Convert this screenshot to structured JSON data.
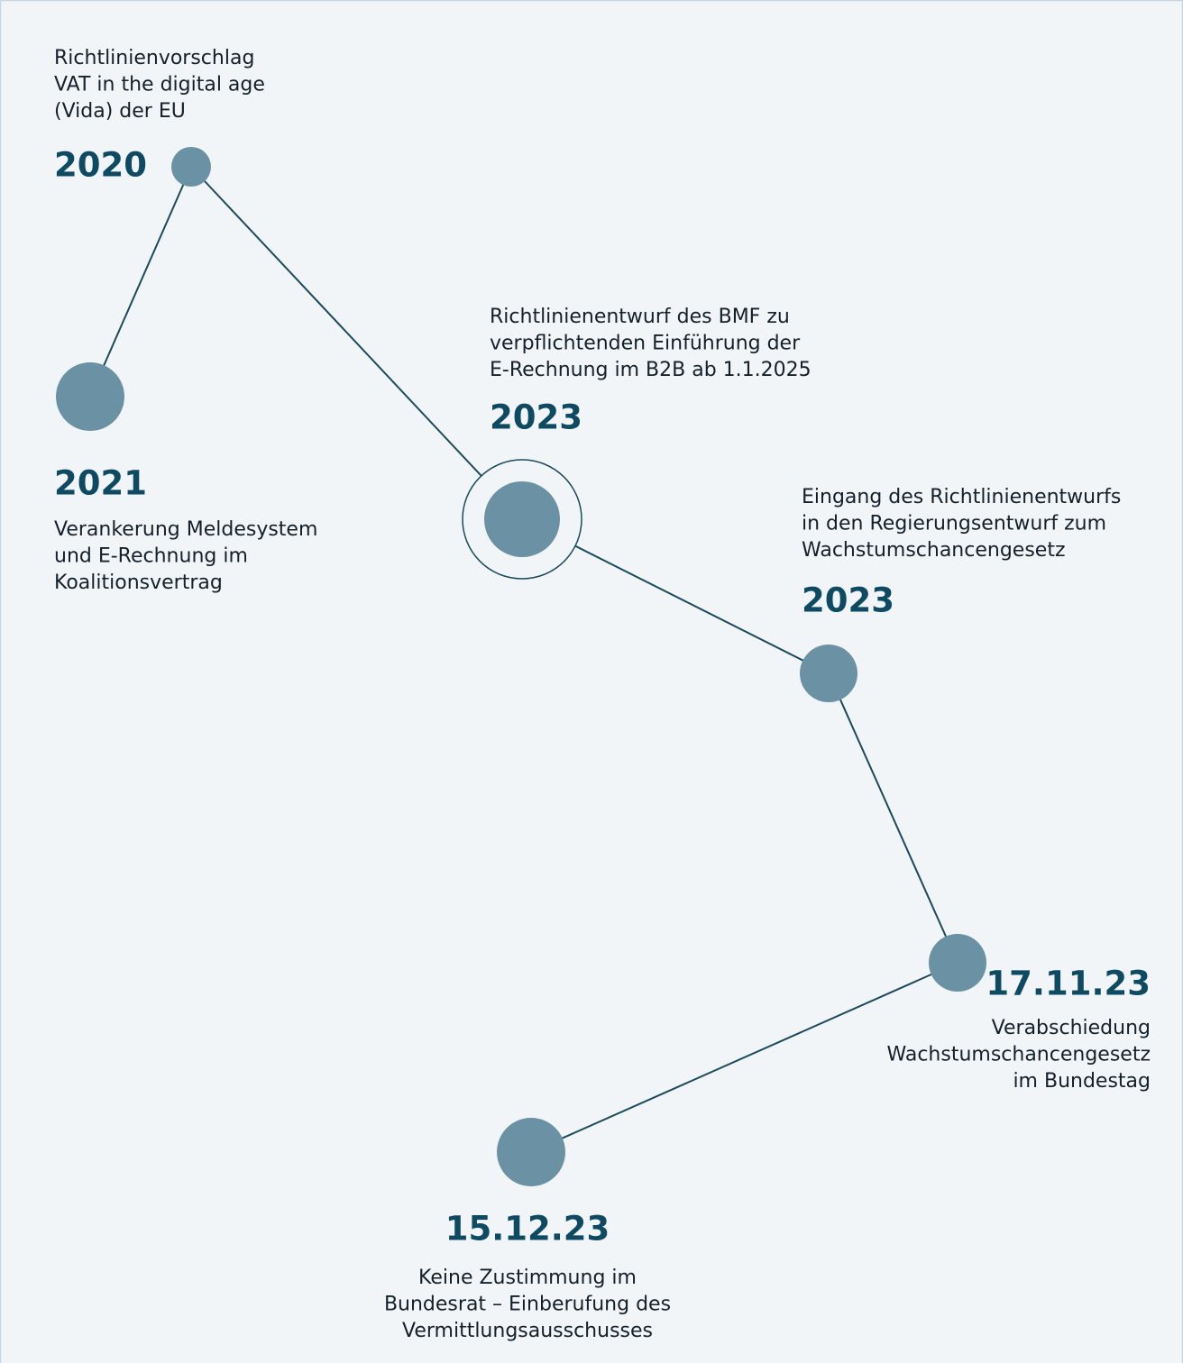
{
  "nodes": [
    {
      "date": "2020",
      "description": [
        "Richtlinienvorschlag",
        "VAT in the digital age",
        "(Vida) der EU"
      ]
    },
    {
      "date": "2021",
      "description": [
        "Verankerung Meldesystem",
        "und E-Rechnung im",
        "Koalitionsvertrag"
      ]
    },
    {
      "date": "2023",
      "description": [
        "Richtlinienentwurf des BMF zu",
        "verpflichtenden Einführung der",
        "E-Rechnung im B2B ab 1.1.2025"
      ]
    },
    {
      "date": "2023",
      "description": [
        "Eingang des Richtlinienentwurfs",
        "in den Regierungsentwurf zum",
        "Wachstumschancengesetz"
      ]
    },
    {
      "date": "17.11.23",
      "description": [
        "Verabschiedung",
        "Wachstumschancengesetz",
        "im Bundestag"
      ]
    },
    {
      "date": "15.12.23",
      "description": [
        "Keine Zustimmung im",
        "Bundesrat – Einberufung des",
        "Vermittlungsausschusses"
      ]
    }
  ]
}
